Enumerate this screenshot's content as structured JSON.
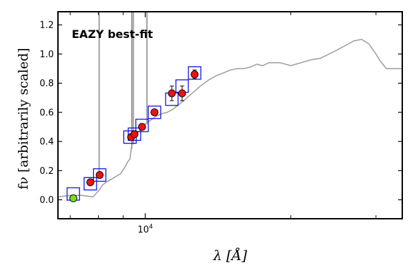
{
  "chart_data": {
    "type": "scatter",
    "annotation": "EAZY best-fit",
    "annotation_color": "#ff0000",
    "xlabel": "λ [Å]",
    "ylabel": "fν [arbitrarily scaled]",
    "x_scale": "log",
    "xlim": [
      6600,
      34000
    ],
    "ylim": [
      -0.13,
      1.29
    ],
    "y_ticks": [
      0.0,
      0.2,
      0.4,
      0.6,
      0.8,
      1.0,
      1.2
    ],
    "y_tick_labels": [
      "0.0",
      "0.2",
      "0.4",
      "0.6",
      "0.8",
      "1.0",
      "1.2"
    ],
    "x_major_ticks": [
      10000
    ],
    "x_major_tick_labels": [
      "10^4"
    ],
    "x_minor_ticks": [
      7000,
      8000,
      9000,
      20000,
      30000
    ],
    "grid": false,
    "colors": {
      "template": "#a0a0a0",
      "model_box": "#1010e0",
      "observed": "#ee1111",
      "observed_first": "#77dd22",
      "errorbar": "#000000"
    },
    "template_spectrum": {
      "x": [
        6600,
        7000,
        7400,
        7800,
        7950,
        8050,
        8150,
        8300,
        8500,
        8700,
        8900,
        9100,
        9200,
        9300,
        9400,
        9550,
        9700,
        9850,
        10000,
        10300,
        10500,
        10800,
        11100,
        11400,
        11800,
        12200,
        12600,
        13000,
        13500,
        14000,
        14500,
        15000,
        15500,
        16000,
        16500,
        17000,
        17500,
        18000,
        19000,
        20000,
        21000,
        22000,
        23000,
        24000,
        25000,
        26000,
        27000,
        28000,
        29000,
        30000,
        30500,
        31000,
        31500,
        32000,
        33000,
        34000
      ],
      "y": [
        0.02,
        0.03,
        0.03,
        0.02,
        0.05,
        0.07,
        0.1,
        0.12,
        0.14,
        0.16,
        0.18,
        0.23,
        0.26,
        0.28,
        0.4,
        0.45,
        0.47,
        0.49,
        0.52,
        0.55,
        0.57,
        0.59,
        0.6,
        0.62,
        0.66,
        0.7,
        0.74,
        0.78,
        0.82,
        0.85,
        0.87,
        0.89,
        0.9,
        0.9,
        0.91,
        0.93,
        0.92,
        0.94,
        0.94,
        0.92,
        0.94,
        0.96,
        0.97,
        1.0,
        1.03,
        1.06,
        1.09,
        1.1,
        1.07,
        1.0,
        0.96,
        0.93,
        0.9,
        0.9,
        0.9,
        0.9
      ]
    },
    "emission_lines": [
      {
        "x": 8030,
        "y_bottom": 0.18,
        "y_top": 1.29
      },
      {
        "x": 9380,
        "y_bottom": 0.35,
        "y_top": 1.29
      },
      {
        "x": 9450,
        "y_bottom": 0.38,
        "y_top": 1.29
      },
      {
        "x": 10080,
        "y_bottom": 0.52,
        "y_top": 1.29
      }
    ],
    "model_fluxes": {
      "x": [
        7100,
        7700,
        8050,
        9300,
        9500,
        9850,
        10450,
        11350,
        11920,
        12650
      ],
      "y": [
        0.04,
        0.11,
        0.17,
        0.43,
        0.45,
        0.51,
        0.6,
        0.69,
        0.78,
        0.87
      ]
    },
    "observed_fluxes": {
      "x": [
        7100,
        7700,
        8050,
        9350,
        9500,
        9850,
        10450,
        11350,
        11920,
        12650
      ],
      "y": [
        0.01,
        0.12,
        0.17,
        0.43,
        0.45,
        0.5,
        0.6,
        0.73,
        0.73,
        0.86
      ],
      "err": [
        0.01,
        0.01,
        0.01,
        0.01,
        0.01,
        0.02,
        0.02,
        0.05,
        0.05,
        0.03
      ]
    }
  }
}
